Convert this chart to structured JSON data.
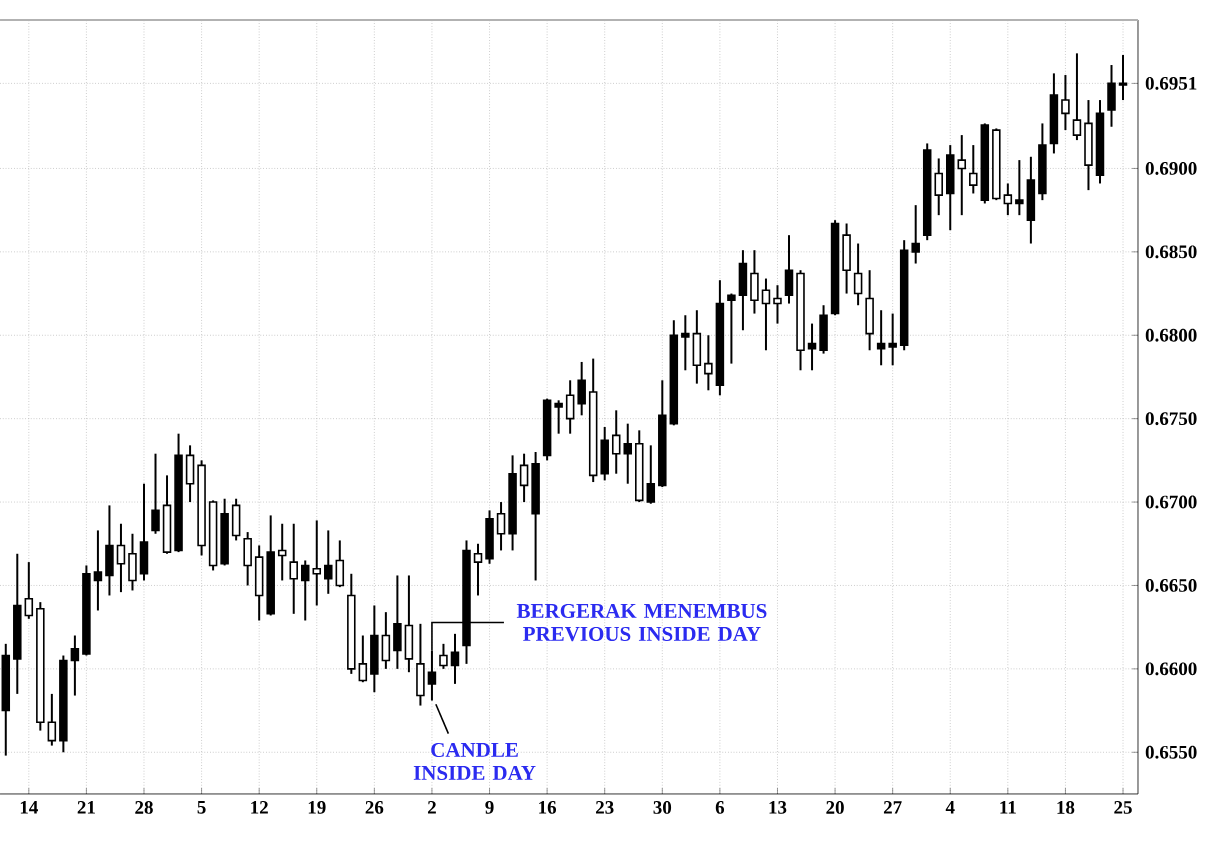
{
  "chart_data": {
    "type": "candlestick",
    "color": "#000000",
    "grid": true,
    "categories": [
      null,
      null,
      "14",
      null,
      null,
      null,
      null,
      "21",
      null,
      null,
      null,
      null,
      "28",
      null,
      null,
      null,
      null,
      "5",
      null,
      null,
      null,
      null,
      "12",
      null,
      null,
      null,
      null,
      "19",
      null,
      null,
      null,
      null,
      "26",
      null,
      null,
      null,
      null,
      "2",
      null,
      null,
      null,
      null,
      "9",
      null,
      null,
      null,
      null,
      "16",
      null,
      null,
      null,
      null,
      "23",
      null,
      null,
      null,
      null,
      "30",
      null,
      null,
      null,
      null,
      "6",
      null,
      null,
      null,
      null,
      "13",
      null,
      null,
      null,
      null,
      "20",
      null,
      null,
      null,
      null,
      "27",
      null,
      null,
      null,
      null,
      "4",
      null,
      null,
      null,
      null,
      "11",
      null,
      null,
      null,
      null,
      "18",
      null,
      null,
      null,
      null,
      "25"
    ],
    "ohlc": [
      [
        0.6575,
        0.6615,
        0.6548,
        0.6608
      ],
      [
        0.6606,
        0.6669,
        0.6585,
        0.6638
      ],
      [
        0.6642,
        0.6664,
        0.663,
        0.6632
      ],
      [
        0.6636,
        0.664,
        0.6563,
        0.6568
      ],
      [
        0.6568,
        0.6585,
        0.6554,
        0.6557
      ],
      [
        0.6557,
        0.6608,
        0.655,
        0.6605
      ],
      [
        0.6605,
        0.662,
        0.6584,
        0.6612
      ],
      [
        0.6609,
        0.6662,
        0.6608,
        0.6657
      ],
      [
        0.6653,
        0.6683,
        0.6635,
        0.6658
      ],
      [
        0.6656,
        0.6698,
        0.6644,
        0.6674
      ],
      [
        0.6674,
        0.6687,
        0.6646,
        0.6663
      ],
      [
        0.6669,
        0.6681,
        0.6647,
        0.6653
      ],
      [
        0.6657,
        0.6711,
        0.6653,
        0.6676
      ],
      [
        0.6683,
        0.6729,
        0.6681,
        0.6695
      ],
      [
        0.6698,
        0.6716,
        0.6669,
        0.667
      ],
      [
        0.6671,
        0.6741,
        0.667,
        0.6728
      ],
      [
        0.6728,
        0.6734,
        0.67,
        0.6711
      ],
      [
        0.6722,
        0.6725,
        0.6668,
        0.6674
      ],
      [
        0.67,
        0.6701,
        0.6659,
        0.6662
      ],
      [
        0.6663,
        0.6702,
        0.6662,
        0.6693
      ],
      [
        0.6698,
        0.6702,
        0.6677,
        0.668
      ],
      [
        0.6678,
        0.6682,
        0.665,
        0.6662
      ],
      [
        0.6667,
        0.6674,
        0.6629,
        0.6644
      ],
      [
        0.6633,
        0.6692,
        0.6632,
        0.667
      ],
      [
        0.6671,
        0.6687,
        0.6653,
        0.6668
      ],
      [
        0.6664,
        0.6687,
        0.6633,
        0.6654
      ],
      [
        0.6653,
        0.6665,
        0.6629,
        0.6662
      ],
      [
        0.666,
        0.6689,
        0.6638,
        0.6657
      ],
      [
        0.6654,
        0.6683,
        0.6645,
        0.6662
      ],
      [
        0.6665,
        0.6677,
        0.6649,
        0.665
      ],
      [
        0.6644,
        0.6657,
        0.6597,
        0.66
      ],
      [
        0.6603,
        0.662,
        0.6592,
        0.6593
      ],
      [
        0.6597,
        0.6638,
        0.6586,
        0.662
      ],
      [
        0.662,
        0.6634,
        0.66,
        0.6605
      ],
      [
        0.6611,
        0.6656,
        0.66,
        0.6627
      ],
      [
        0.6626,
        0.6656,
        0.6598,
        0.6606
      ],
      [
        0.6603,
        0.6627,
        0.6578,
        0.6584
      ],
      [
        0.6591,
        0.6611,
        0.6581,
        0.6598
      ],
      [
        0.6608,
        0.6615,
        0.66,
        0.6602
      ],
      [
        0.6602,
        0.6621,
        0.6591,
        0.661
      ],
      [
        0.6614,
        0.6677,
        0.6603,
        0.6671
      ],
      [
        0.6669,
        0.6675,
        0.6644,
        0.6664
      ],
      [
        0.6666,
        0.6695,
        0.6663,
        0.669
      ],
      [
        0.6693,
        0.67,
        0.6671,
        0.6681
      ],
      [
        0.6681,
        0.6728,
        0.6671,
        0.6717
      ],
      [
        0.6722,
        0.6729,
        0.67,
        0.671
      ],
      [
        0.6693,
        0.673,
        0.6653,
        0.6723
      ],
      [
        0.6728,
        0.6762,
        0.6725,
        0.6761
      ],
      [
        0.6757,
        0.6761,
        0.6741,
        0.6759
      ],
      [
        0.6764,
        0.6773,
        0.6741,
        0.675
      ],
      [
        0.6759,
        0.6784,
        0.6752,
        0.6773
      ],
      [
        0.6766,
        0.6786,
        0.6712,
        0.6716
      ],
      [
        0.6717,
        0.6745,
        0.6713,
        0.6737
      ],
      [
        0.674,
        0.6755,
        0.6717,
        0.6729
      ],
      [
        0.6729,
        0.6747,
        0.6711,
        0.6735
      ],
      [
        0.6735,
        0.6743,
        0.67,
        0.6701
      ],
      [
        0.67,
        0.6734,
        0.6699,
        0.6711
      ],
      [
        0.671,
        0.6773,
        0.6709,
        0.6752
      ],
      [
        0.6747,
        0.6809,
        0.6746,
        0.68
      ],
      [
        0.6799,
        0.6812,
        0.6779,
        0.6801
      ],
      [
        0.6801,
        0.6815,
        0.6771,
        0.6782
      ],
      [
        0.6783,
        0.68,
        0.6767,
        0.6777
      ],
      [
        0.677,
        0.6833,
        0.6764,
        0.6819
      ],
      [
        0.6821,
        0.6825,
        0.6783,
        0.6824
      ],
      [
        0.6824,
        0.6851,
        0.6803,
        0.6843
      ],
      [
        0.6837,
        0.6851,
        0.6813,
        0.6821
      ],
      [
        0.6827,
        0.6834,
        0.6791,
        0.6819
      ],
      [
        0.6822,
        0.683,
        0.6807,
        0.6819
      ],
      [
        0.6824,
        0.686,
        0.6819,
        0.6839
      ],
      [
        0.6837,
        0.6839,
        0.6779,
        0.6791
      ],
      [
        0.6792,
        0.6807,
        0.6779,
        0.6795
      ],
      [
        0.6791,
        0.6818,
        0.6789,
        0.6812
      ],
      [
        0.6813,
        0.6869,
        0.6812,
        0.6867
      ],
      [
        0.686,
        0.6867,
        0.6825,
        0.6839
      ],
      [
        0.6837,
        0.6855,
        0.6818,
        0.6825
      ],
      [
        0.6822,
        0.6839,
        0.6791,
        0.6801
      ],
      [
        0.6792,
        0.6815,
        0.6782,
        0.6795
      ],
      [
        0.6793,
        0.6813,
        0.6782,
        0.6795
      ],
      [
        0.6794,
        0.6857,
        0.6791,
        0.6851
      ],
      [
        0.685,
        0.6878,
        0.6843,
        0.6855
      ],
      [
        0.686,
        0.6915,
        0.6857,
        0.6911
      ],
      [
        0.6897,
        0.6906,
        0.6872,
        0.6884
      ],
      [
        0.6885,
        0.6914,
        0.6863,
        0.6908
      ],
      [
        0.6905,
        0.692,
        0.6872,
        0.69
      ],
      [
        0.6897,
        0.6914,
        0.6885,
        0.689
      ],
      [
        0.6881,
        0.6927,
        0.6879,
        0.6926
      ],
      [
        0.6923,
        0.6924,
        0.6881,
        0.6882
      ],
      [
        0.6884,
        0.6891,
        0.6872,
        0.6879
      ],
      [
        0.6879,
        0.6905,
        0.6872,
        0.6881
      ],
      [
        0.6869,
        0.6907,
        0.6855,
        0.6893
      ],
      [
        0.6885,
        0.6927,
        0.6881,
        0.6914
      ],
      [
        0.6915,
        0.6957,
        0.6909,
        0.6944
      ],
      [
        0.6941,
        0.6956,
        0.6923,
        0.6933
      ],
      [
        0.6929,
        0.6969,
        0.6917,
        0.692
      ],
      [
        0.6927,
        0.6941,
        0.6887,
        0.6902
      ],
      [
        0.6896,
        0.6941,
        0.6891,
        0.6933
      ],
      [
        0.6935,
        0.6962,
        0.6925,
        0.6951
      ],
      [
        0.695,
        0.6968,
        0.6941,
        0.6951
      ]
    ],
    "ylim": [
      0.6525,
      0.6989
    ],
    "yticks": [
      {
        "value": 0.655,
        "label": "0.6550"
      },
      {
        "value": 0.66,
        "label": "0.6600"
      },
      {
        "value": 0.665,
        "label": "0.6650"
      },
      {
        "value": 0.67,
        "label": "0.6700"
      },
      {
        "value": 0.675,
        "label": "0.6750"
      },
      {
        "value": 0.68,
        "label": "0.6800"
      },
      {
        "value": 0.685,
        "label": "0.6850"
      },
      {
        "value": 0.69,
        "label": "0.6900"
      },
      0.6951
    ],
    "annotations": [
      {
        "text": "BERGERAK MENEMBUS PREVIOUS INSIDE DAY",
        "x": "2",
        "y": 0.6611
      },
      "CANDLE INSIDE DAY"
    ]
  }
}
